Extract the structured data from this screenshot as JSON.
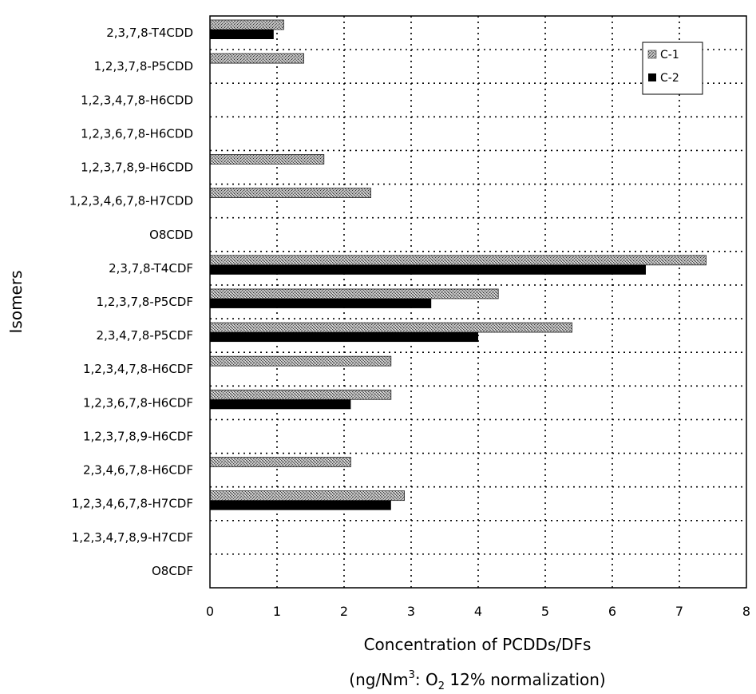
{
  "chart_data": {
    "type": "bar",
    "orientation": "horizontal",
    "categories": [
      "2,3,7,8-T4CDD",
      "1,2,3,7,8-P5CDD",
      "1,2,3,4,7,8-H6CDD",
      "1,2,3,6,7,8-H6CDD",
      "1,2,3,7,8,9-H6CDD",
      "1,2,3,4,6,7,8-H7CDD",
      "O8CDD",
      "2,3,7,8-T4CDF",
      "1,2,3,7,8-P5CDF",
      "2,3,4,7,8-P5CDF",
      "1,2,3,4,7,8-H6CDF",
      "1,2,3,6,7,8-H6CDF",
      "1,2,3,7,8,9-H6CDF",
      "2,3,4,6,7,8-H6CDF",
      "1,2,3,4,6,7,8-H7CDF",
      "1,2,3,4,7,8,9-H7CDF",
      "O8CDF"
    ],
    "series": [
      {
        "name": "C-1",
        "color": "#9a9a9a",
        "pattern": "speckled-gray",
        "values": [
          1.1,
          1.4,
          0,
          0,
          1.7,
          2.4,
          0,
          7.4,
          4.3,
          5.4,
          2.7,
          2.7,
          0,
          2.1,
          2.9,
          0,
          0
        ]
      },
      {
        "name": "C-2",
        "color": "#000000",
        "pattern": "solid-black",
        "values": [
          0.95,
          0,
          0,
          0,
          0,
          0,
          0,
          6.5,
          3.3,
          4.0,
          0,
          2.1,
          0,
          0,
          2.7,
          0,
          0
        ]
      }
    ],
    "xlim": [
      0,
      8
    ],
    "x_ticks": [
      "0",
      "1",
      "2",
      "3",
      "4",
      "5",
      "6",
      "7",
      "8"
    ],
    "ylabel": "Isomers",
    "xlabel_line1": "Concentration of PCDDs/DFs",
    "xlabel_line2_prefix": "(ng/Nm",
    "xlabel_line2_sup": "3",
    "xlabel_line2_mid": ": O",
    "xlabel_line2_sub": "2",
    "xlabel_line2_suffix": " 12% normalization)",
    "grid": "dotted",
    "legend_position": "top-right"
  }
}
